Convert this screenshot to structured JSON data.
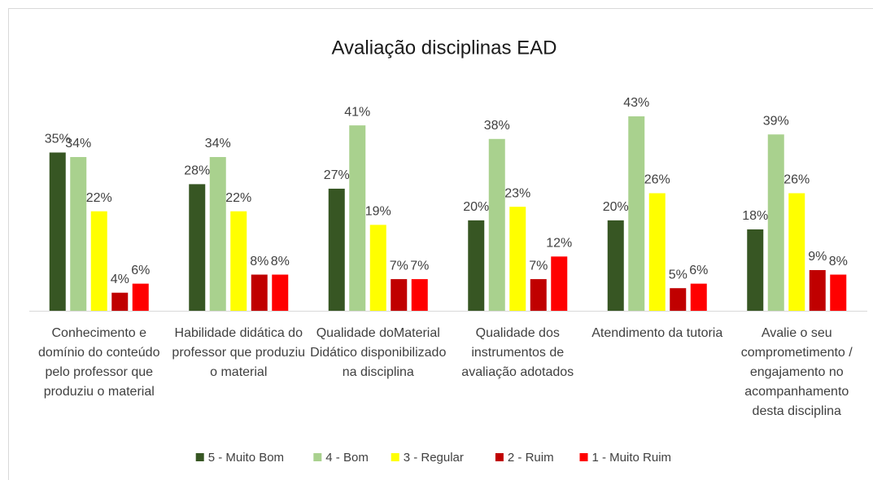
{
  "chart_data": {
    "type": "bar",
    "title": "Avaliação disciplinas EAD",
    "categories": [
      "Conhecimento e domínio do conteúdo pelo professor que produziu o material",
      "Habilidade didática do professor que produziu o material",
      "Qualidade doMaterial Didático disponibilizado na disciplina",
      "Qualidade dos instrumentos de avaliação adotados",
      "Atendimento da tutoria",
      "Avalie o seu comprometimento / engajamento no acompanhamento desta disciplina"
    ],
    "series": [
      {
        "name": "5 - Muito Bom",
        "color": "#375623",
        "values": [
          35,
          28,
          27,
          20,
          20,
          18
        ],
        "value_labels": [
          "35%",
          "28%",
          "27%",
          "20%",
          "20%",
          "18%"
        ]
      },
      {
        "name": "4 - Bom",
        "color": "#a9d18e",
        "values": [
          34,
          34,
          41,
          38,
          43,
          39
        ],
        "value_labels": [
          "34%",
          "34%",
          "41%",
          "38%",
          "43%",
          "39%"
        ]
      },
      {
        "name": "3 - Regular",
        "color": "#ffff00",
        "values": [
          22,
          22,
          19,
          23,
          26,
          26
        ],
        "value_labels": [
          "22%",
          "22%",
          "19%",
          "23%",
          "26%",
          "26%"
        ]
      },
      {
        "name": "2 - Ruim",
        "color": "#c00000",
        "values": [
          4,
          8,
          7,
          7,
          5,
          9
        ],
        "value_labels": [
          "4%",
          "8%",
          "7%",
          "7%",
          "5%",
          "9%"
        ]
      },
      {
        "name": "1 - Muito Ruim",
        "color": "#ff0000",
        "values": [
          6,
          8,
          7,
          12,
          6,
          8
        ],
        "value_labels": [
          "6%",
          "8%",
          "7%",
          "12%",
          "6%",
          "8%"
        ]
      }
    ],
    "legend": "bottom"
  }
}
